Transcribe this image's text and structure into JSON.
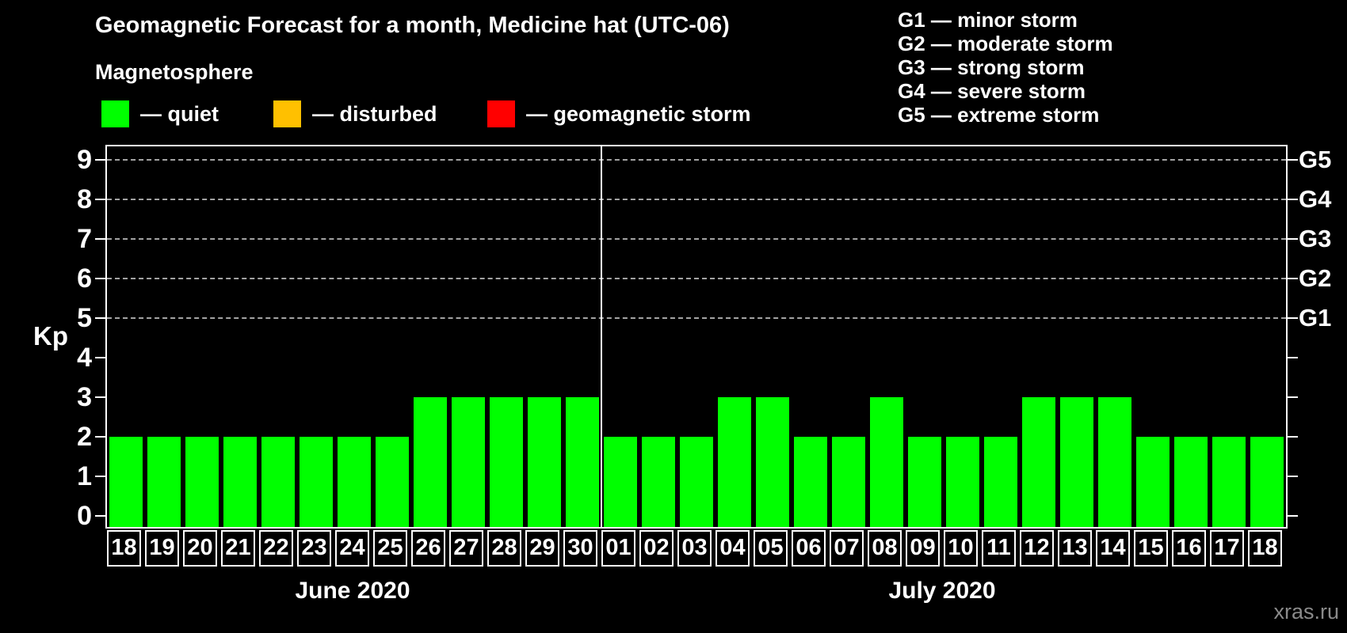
{
  "title": "Geomagnetic Forecast for a month, Medicine hat (UTC-06)",
  "legend": {
    "heading": "Magnetosphere",
    "items": [
      {
        "name": "quiet",
        "label": "— quiet",
        "color": "#00ff00"
      },
      {
        "name": "disturbed",
        "label": "— disturbed",
        "color": "#ffc000"
      },
      {
        "name": "geomagnetic-storm",
        "label": "— geomagnetic storm",
        "color": "#ff0000"
      }
    ]
  },
  "g_scale_legend": [
    "G1 — minor storm",
    "G2 — moderate storm",
    "G3 — strong storm",
    "G4 — severe storm",
    "G5 — extreme storm"
  ],
  "y_axis": {
    "label": "Kp",
    "ticks": [
      0,
      1,
      2,
      3,
      4,
      5,
      6,
      7,
      8,
      9
    ]
  },
  "watermark": "xras.ru",
  "chart_data": {
    "type": "bar",
    "title": "Geomagnetic Forecast for a month, Medicine hat (UTC-06)",
    "ylabel": "Kp",
    "ylim": [
      0,
      9.7
    ],
    "grid": "dashed horizontal lines at Kp 5-9 only",
    "legend_position": "top",
    "gridlines": [
      {
        "kp": 5,
        "right_label": "G1"
      },
      {
        "kp": 6,
        "right_label": "G2"
      },
      {
        "kp": 7,
        "right_label": "G3"
      },
      {
        "kp": 8,
        "right_label": "G4"
      },
      {
        "kp": 9,
        "right_label": "G5"
      }
    ],
    "bar_state_colors": {
      "quiet": "#00ff00",
      "disturbed": "#ffc000",
      "storm": "#ff0000"
    },
    "months": [
      {
        "label": "June 2020",
        "days": [
          "18",
          "19",
          "20",
          "21",
          "22",
          "23",
          "24",
          "25",
          "26",
          "27",
          "28",
          "29",
          "30"
        ],
        "values": [
          2,
          2,
          2,
          2,
          2,
          2,
          2,
          2,
          3,
          3,
          3,
          3,
          3
        ],
        "states": [
          "quiet",
          "quiet",
          "quiet",
          "quiet",
          "quiet",
          "quiet",
          "quiet",
          "quiet",
          "quiet",
          "quiet",
          "quiet",
          "quiet",
          "quiet"
        ]
      },
      {
        "label": "July 2020",
        "days": [
          "01",
          "02",
          "03",
          "04",
          "05",
          "06",
          "07",
          "08",
          "09",
          "10",
          "11",
          "12",
          "13",
          "14",
          "15",
          "16",
          "17",
          "18"
        ],
        "values": [
          2,
          2,
          2,
          3,
          3,
          2,
          2,
          3,
          2,
          2,
          2,
          3,
          3,
          3,
          2,
          2,
          2,
          2
        ],
        "states": [
          "quiet",
          "quiet",
          "quiet",
          "quiet",
          "quiet",
          "quiet",
          "quiet",
          "quiet",
          "quiet",
          "quiet",
          "quiet",
          "quiet",
          "quiet",
          "quiet",
          "quiet",
          "quiet",
          "quiet",
          "quiet"
        ]
      }
    ]
  }
}
